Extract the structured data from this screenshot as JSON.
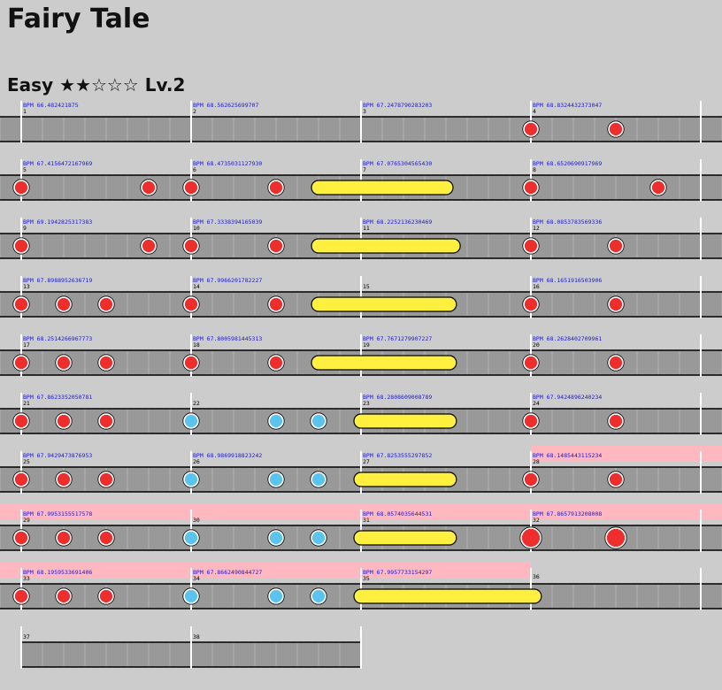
{
  "song": {
    "title": "Fairy Tale",
    "difficulty": "Easy",
    "stars": "★★☆☆☆",
    "level": "Lv.2"
  },
  "colors": {
    "background": "#cccccc",
    "lane": "#999999",
    "bpm_highlight": "#ffb8c0",
    "don": "#ee2d2d",
    "ka": "#5bc4ee",
    "drumroll": "#fff040",
    "bpm_text": "#1a1ad0"
  },
  "measures": [
    {
      "n": "1",
      "bpm": "BPM 66.482421875"
    },
    {
      "n": "2",
      "bpm": "BPM 68.562625699707"
    },
    {
      "n": "3",
      "bpm": "BPM 67.2478790283203"
    },
    {
      "n": "4",
      "bpm": "BPM 68.8324432373047"
    },
    {
      "n": "5",
      "bpm": "BPM 67.4156472167969"
    },
    {
      "n": "6",
      "bpm": "BPM 68.4735031127930"
    },
    {
      "n": "7",
      "bpm": "BPM 67.0765304565430"
    },
    {
      "n": "8",
      "bpm": "BPM 68.6520690917969"
    },
    {
      "n": "9",
      "bpm": "BPM 69.1942825317383"
    },
    {
      "n": "10",
      "bpm": "BPM 67.3338394165039"
    },
    {
      "n": "11",
      "bpm": "BPM 68.2252136230469"
    },
    {
      "n": "12",
      "bpm": "BPM 68.0853783569336"
    },
    {
      "n": "13",
      "bpm": "BPM 67.8988952636719"
    },
    {
      "n": "14",
      "bpm": "BPM 67.9966201782227"
    },
    {
      "n": "15",
      "bpm": ""
    },
    {
      "n": "16",
      "bpm": "BPM 68.1651916503906"
    },
    {
      "n": "17",
      "bpm": "BPM 68.2514266967773"
    },
    {
      "n": "18",
      "bpm": "BPM 67.8005981445313"
    },
    {
      "n": "19",
      "bpm": "BPM 67.7671279907227"
    },
    {
      "n": "20",
      "bpm": "BPM 68.2628402709961"
    },
    {
      "n": "21",
      "bpm": "BPM 67.8623352050781"
    },
    {
      "n": "22",
      "bpm": ""
    },
    {
      "n": "23",
      "bpm": "BPM 68.2808609008789"
    },
    {
      "n": "24",
      "bpm": "BPM 67.9424896240234"
    },
    {
      "n": "25",
      "bpm": "BPM 67.9429473876953"
    },
    {
      "n": "26",
      "bpm": "BPM 68.9869918823242"
    },
    {
      "n": "27",
      "bpm": "BPM 67.8253555297852"
    },
    {
      "n": "28",
      "bpm": "BPM 68.1485443115234"
    },
    {
      "n": "29",
      "bpm": "BPM 67.9953155517578"
    },
    {
      "n": "30",
      "bpm": ""
    },
    {
      "n": "31",
      "bpm": "BPM 68.0574035644531"
    },
    {
      "n": "32",
      "bpm": "BPM 67.8657913208008"
    },
    {
      "n": "33",
      "bpm": "BPM 68.1959533691406"
    },
    {
      "n": "34",
      "bpm": "BPM 67.8662490844727"
    },
    {
      "n": "35",
      "bpm": "BPM 67.9957733154297"
    },
    {
      "n": "36",
      "bpm": ""
    },
    {
      "n": "37",
      "bpm": ""
    },
    {
      "n": "38",
      "bpm": ""
    }
  ],
  "rows": [
    {
      "measures": [
        0,
        1,
        2,
        3
      ],
      "highlight_bpm": [],
      "notes": [
        {
          "t": "don",
          "beat": 12
        },
        {
          "t": "don",
          "beat": 14
        }
      ]
    },
    {
      "measures": [
        4,
        5,
        6,
        7
      ],
      "highlight_bpm": [],
      "notes": [
        {
          "t": "don",
          "beat": 0
        },
        {
          "t": "don",
          "beat": 3
        },
        {
          "t": "don",
          "beat": 4
        },
        {
          "t": "don",
          "beat": 6
        },
        {
          "t": "roll",
          "beat": 7,
          "end": 10
        },
        {
          "t": "don",
          "beat": 12
        },
        {
          "t": "don",
          "beat": 15
        }
      ]
    },
    {
      "measures": [
        8,
        9,
        10,
        11
      ],
      "highlight_bpm": [],
      "notes": [
        {
          "t": "don",
          "beat": 0
        },
        {
          "t": "don",
          "beat": 3
        },
        {
          "t": "don",
          "beat": 4
        },
        {
          "t": "don",
          "beat": 6
        },
        {
          "t": "roll",
          "beat": 7,
          "end": 10.17
        },
        {
          "t": "don",
          "beat": 12
        },
        {
          "t": "don",
          "beat": 14
        }
      ]
    },
    {
      "measures": [
        12,
        13,
        14,
        15
      ],
      "highlight_bpm": [],
      "notes": [
        {
          "t": "don",
          "beat": 0
        },
        {
          "t": "don",
          "beat": 1
        },
        {
          "t": "don",
          "beat": 2
        },
        {
          "t": "don",
          "beat": 4
        },
        {
          "t": "don",
          "beat": 6
        },
        {
          "t": "roll",
          "beat": 7,
          "end": 10.08
        },
        {
          "t": "don",
          "beat": 12
        },
        {
          "t": "don",
          "beat": 14
        }
      ]
    },
    {
      "measures": [
        16,
        17,
        18,
        19
      ],
      "highlight_bpm": [],
      "notes": [
        {
          "t": "don",
          "beat": 0
        },
        {
          "t": "don",
          "beat": 1
        },
        {
          "t": "don",
          "beat": 2
        },
        {
          "t": "don",
          "beat": 4
        },
        {
          "t": "don",
          "beat": 6
        },
        {
          "t": "roll",
          "beat": 7,
          "end": 10.08
        },
        {
          "t": "don",
          "beat": 12
        },
        {
          "t": "don",
          "beat": 14
        }
      ]
    },
    {
      "measures": [
        20,
        21,
        22,
        23
      ],
      "highlight_bpm": [],
      "notes": [
        {
          "t": "don",
          "beat": 0
        },
        {
          "t": "don",
          "beat": 1
        },
        {
          "t": "don",
          "beat": 2
        },
        {
          "t": "ka",
          "beat": 4
        },
        {
          "t": "ka",
          "beat": 6
        },
        {
          "t": "ka",
          "beat": 7
        },
        {
          "t": "roll",
          "beat": 8,
          "end": 10.08
        },
        {
          "t": "don",
          "beat": 12
        },
        {
          "t": "don",
          "beat": 14
        }
      ]
    },
    {
      "measures": [
        24,
        25,
        26,
        27
      ],
      "highlight_bpm": [
        3
      ],
      "notes": [
        {
          "t": "don",
          "beat": 0
        },
        {
          "t": "don",
          "beat": 1
        },
        {
          "t": "don",
          "beat": 2
        },
        {
          "t": "ka",
          "beat": 4
        },
        {
          "t": "ka",
          "beat": 6
        },
        {
          "t": "ka",
          "beat": 7
        },
        {
          "t": "roll",
          "beat": 8,
          "end": 10.08
        },
        {
          "t": "don",
          "beat": 12
        },
        {
          "t": "don",
          "beat": 14
        }
      ]
    },
    {
      "measures": [
        28,
        29,
        30,
        31
      ],
      "highlight_bpm": [
        0,
        1,
        2,
        3
      ],
      "notes": [
        {
          "t": "don",
          "beat": 0
        },
        {
          "t": "don",
          "beat": 1
        },
        {
          "t": "don",
          "beat": 2
        },
        {
          "t": "ka",
          "beat": 4
        },
        {
          "t": "ka",
          "beat": 6
        },
        {
          "t": "ka",
          "beat": 7
        },
        {
          "t": "roll",
          "beat": 8,
          "end": 10.08
        },
        {
          "t": "don",
          "beat": 12,
          "big": true
        },
        {
          "t": "don",
          "beat": 14,
          "big": true
        }
      ]
    },
    {
      "measures": [
        32,
        33,
        34,
        35
      ],
      "highlight_bpm": [
        0,
        1,
        2
      ],
      "last_partial": true,
      "notes": [
        {
          "t": "don",
          "beat": 0
        },
        {
          "t": "don",
          "beat": 1
        },
        {
          "t": "don",
          "beat": 2
        },
        {
          "t": "ka",
          "beat": 4
        },
        {
          "t": "ka",
          "beat": 6
        },
        {
          "t": "ka",
          "beat": 7
        },
        {
          "t": "roll",
          "beat": 8,
          "end": 12.08
        }
      ]
    },
    {
      "measures": [
        36,
        37
      ],
      "highlight_bpm": [],
      "short": true,
      "notes": []
    }
  ]
}
